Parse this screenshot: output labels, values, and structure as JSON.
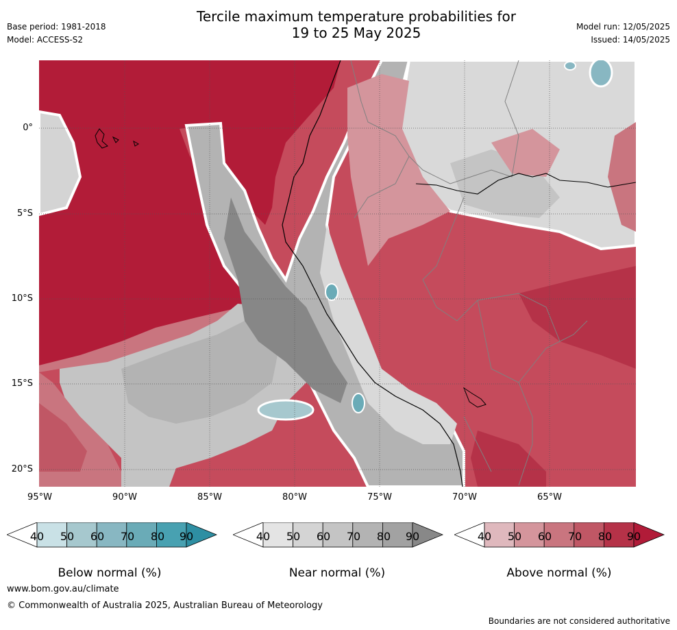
{
  "header": {
    "title_line1": "Tercile maximum temperature probabilities for",
    "title_line2": "19 to 25 May 2025",
    "base_period": "Base period: 1981-2018",
    "model": "Model: ACCESS-S2",
    "model_run": "Model run: 12/05/2025",
    "issued": "Issued: 14/05/2025"
  },
  "map": {
    "lat_labels": [
      "0°",
      "5°S",
      "10°S",
      "15°S",
      "20°S"
    ],
    "lon_labels": [
      "95°W",
      "90°W",
      "85°W",
      "80°W",
      "75°W",
      "70°W",
      "65°W"
    ],
    "colors": {
      "ocean_dark_red": "#b21c38",
      "land_mid_red": "#c54b5c",
      "gray_dark": "#878787",
      "gray_light": "#d9d9d9",
      "boundary": "#ffffff"
    }
  },
  "colorbars": [
    {
      "name": "Below normal (%)",
      "ticks": [
        "40",
        "50",
        "60",
        "70",
        "80",
        "90"
      ],
      "colors": [
        "#c9e1e6",
        "#a6c8ce",
        "#88b7c2",
        "#6aabb7",
        "#48a1b1",
        "#2e8fa3"
      ]
    },
    {
      "name": "Near normal (%)",
      "ticks": [
        "40",
        "50",
        "60",
        "70",
        "80",
        "90"
      ],
      "colors": [
        "#e4e4e4",
        "#d4d4d4",
        "#c4c4c4",
        "#b3b3b3",
        "#a2a2a2",
        "#888888"
      ]
    },
    {
      "name": "Above normal (%)",
      "ticks": [
        "40",
        "50",
        "60",
        "70",
        "80",
        "90"
      ],
      "colors": [
        "#dfb8bd",
        "#d4959c",
        "#c9757f",
        "#c05765",
        "#b53248",
        "#b11b38"
      ]
    }
  ],
  "footer": {
    "url": "www.bom.gov.au/climate",
    "copyright": "© Commonwealth of Australia 2025, Australian Bureau of Meteorology",
    "disclaimer": "Boundaries are not considered authoritative"
  }
}
